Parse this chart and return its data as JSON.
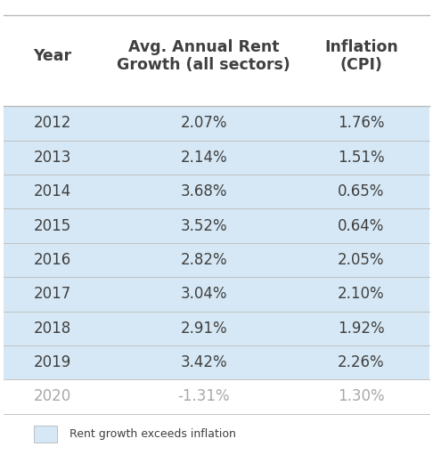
{
  "headers": [
    "Year",
    "Avg. Annual Rent\nGrowth (all sectors)",
    "Inflation\n(CPI)"
  ],
  "rows": [
    [
      "2012",
      "2.07%",
      "1.76%",
      true
    ],
    [
      "2013",
      "2.14%",
      "1.51%",
      true
    ],
    [
      "2014",
      "3.68%",
      "0.65%",
      true
    ],
    [
      "2015",
      "3.52%",
      "0.64%",
      true
    ],
    [
      "2016",
      "2.82%",
      "2.05%",
      true
    ],
    [
      "2017",
      "3.04%",
      "2.10%",
      true
    ],
    [
      "2018",
      "2.91%",
      "1.92%",
      true
    ],
    [
      "2019",
      "3.42%",
      "2.26%",
      true
    ],
    [
      "2020",
      "-1.31%",
      "1.30%",
      false
    ]
  ],
  "highlight_color": "#d6e8f5",
  "white_bg": "#ffffff",
  "header_color": "#404040",
  "data_color": "#404040",
  "muted_color": "#a8a8a8",
  "legend_label": "Rent growth exceeds inflation",
  "line_color": "#bbbbbb"
}
